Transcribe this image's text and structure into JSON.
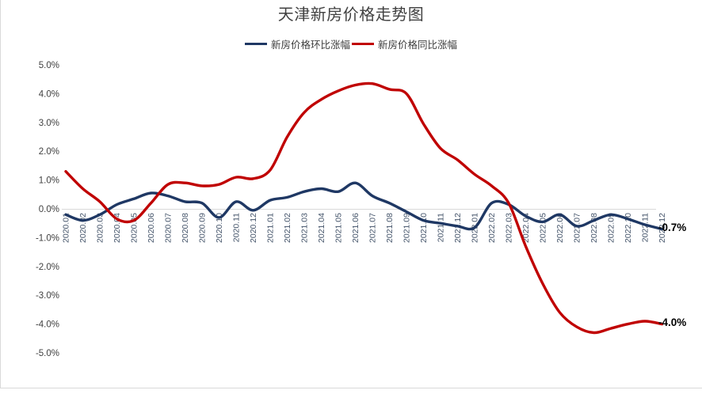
{
  "title": "天津新房价格走势图",
  "legend": {
    "items": [
      {
        "label": "新房价格环比涨幅",
        "color": "#1F3864"
      },
      {
        "label": "新房价格同比涨幅",
        "color": "#C00000"
      }
    ]
  },
  "axes": {
    "y_tick_labels": [
      "5.0%",
      "4.0%",
      "3.0%",
      "2.0%",
      "1.0%",
      "0.0%",
      "-1.0%",
      "-2.0%",
      "-3.0%",
      "-4.0%",
      "-5.0%"
    ],
    "y_tick_values": [
      5,
      4,
      3,
      2,
      1,
      0,
      -1,
      -2,
      -3,
      -4,
      -5
    ],
    "y_label_color": "#404040",
    "x_label_color": "#44546A",
    "zero_line_color": "#d9d9d9"
  },
  "end_labels": {
    "mom": "-0.7%",
    "yoy": "-4.0%"
  },
  "chart_data": {
    "type": "line",
    "title": "天津新房价格走势图",
    "x": [
      "2020.01",
      "2020.02",
      "2020.03",
      "2020.04",
      "2020.05",
      "2020.06",
      "2020.07",
      "2020.08",
      "2020.09",
      "2020.10",
      "2020.11",
      "2020.12",
      "2021.01",
      "2021.02",
      "2021.03",
      "2021.04",
      "2021.05",
      "2021.06",
      "2021.07",
      "2021.08",
      "2021.09",
      "2021.10",
      "2021.11",
      "2021.12",
      "2022.01",
      "2022.02",
      "2022.03",
      "2022.04",
      "2022.05",
      "2022.06",
      "2022.07",
      "2022.08",
      "2022.09",
      "2022.10",
      "2022.11",
      "2022.12"
    ],
    "series": [
      {
        "name": "新房价格环比涨幅",
        "color": "#1F3864",
        "values": [
          -0.2,
          -0.4,
          -0.2,
          0.15,
          0.35,
          0.55,
          0.45,
          0.25,
          0.2,
          -0.3,
          0.25,
          -0.05,
          0.3,
          0.4,
          0.6,
          0.7,
          0.6,
          0.9,
          0.45,
          0.2,
          -0.1,
          -0.4,
          -0.5,
          -0.6,
          -0.65,
          0.2,
          0.15,
          -0.25,
          -0.45,
          -0.2,
          -0.6,
          -0.4,
          -0.2,
          -0.35,
          -0.55,
          -0.7
        ],
        "end_label": "-0.7%"
      },
      {
        "name": "新房价格同比涨幅",
        "color": "#C00000",
        "values": [
          1.3,
          0.7,
          0.25,
          -0.35,
          -0.4,
          0.2,
          0.85,
          0.9,
          0.8,
          0.85,
          1.1,
          1.05,
          1.35,
          2.5,
          3.35,
          3.8,
          4.1,
          4.3,
          4.35,
          4.15,
          4.0,
          2.95,
          2.1,
          1.7,
          1.2,
          0.8,
          0.2,
          -1.3,
          -2.6,
          -3.6,
          -4.1,
          -4.3,
          -4.15,
          -4.0,
          -3.9,
          -4.0
        ],
        "end_label": "-4.0%"
      }
    ],
    "ylim": [
      -5,
      5
    ],
    "ylabel": "",
    "xlabel": "",
    "grid": "zero-line-only",
    "legend_position": "top",
    "line_style": "smoothed"
  }
}
